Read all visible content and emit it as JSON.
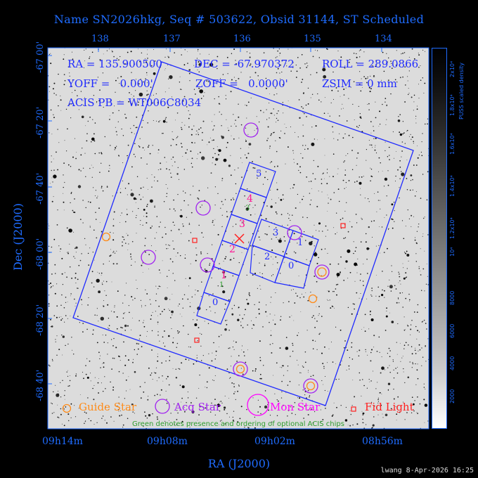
{
  "title": "Name SN2026hkg, Seq # 503622, Obsid 31144, ST Scheduled",
  "info": {
    "ra": "RA = 135.900500",
    "dec": "DEC = -67.970372",
    "roll": "ROLL = 289.0866",
    "yoff": "YOFF =   0.000'",
    "zoff": "ZOFF =   0.0000'",
    "zsim": "ZSIM = 0 mm",
    "acis_pb": "ACIS PB = WT006C8034"
  },
  "axes": {
    "ra_top_ticks": [
      "138",
      "137",
      "136",
      "135",
      "134"
    ],
    "dec_ticks": [
      "-67 00'",
      "-67 20'",
      "-67 40'",
      "-68 00'",
      "-68 20'",
      "-68 40'"
    ],
    "ra_bottom_ticks": [
      "09h14m",
      "09h08m",
      "09h02m",
      "08h56m"
    ],
    "xlabel": "RA (J2000)",
    "ylabel": "Dec (J2000)"
  },
  "colorbar": {
    "title": "PUSS scaled density",
    "ticks": [
      "2000",
      "4000",
      "6000",
      "8000",
      "10⁴",
      "1.2x10⁴",
      "1.4x10⁴",
      "1.6x10⁴",
      "1.8x10⁴",
      "2x10⁴"
    ]
  },
  "chips": {
    "s_array": [
      "0",
      "1",
      "2",
      "3",
      "4",
      "5"
    ],
    "i_array": [
      "3",
      "1",
      "2",
      "0"
    ],
    "optional": [
      "1",
      "3"
    ]
  },
  "legend": {
    "guide": "Guide Star",
    "acq": "Acq Star",
    "mon": "Mon Star",
    "fid": "Fid Light",
    "note": "Green denotes presence and ordering of optional ACIS chips"
  },
  "colors": {
    "guide": "#ff8c1a",
    "acq": "#a020f0",
    "mon": "#ff00ff",
    "fid": "#ff2020",
    "chip_label": "#1f2aff",
    "pink": "#ff1493",
    "green": "#2e9e2e"
  },
  "credit": "lwang  8-Apr-2026 16:25"
}
